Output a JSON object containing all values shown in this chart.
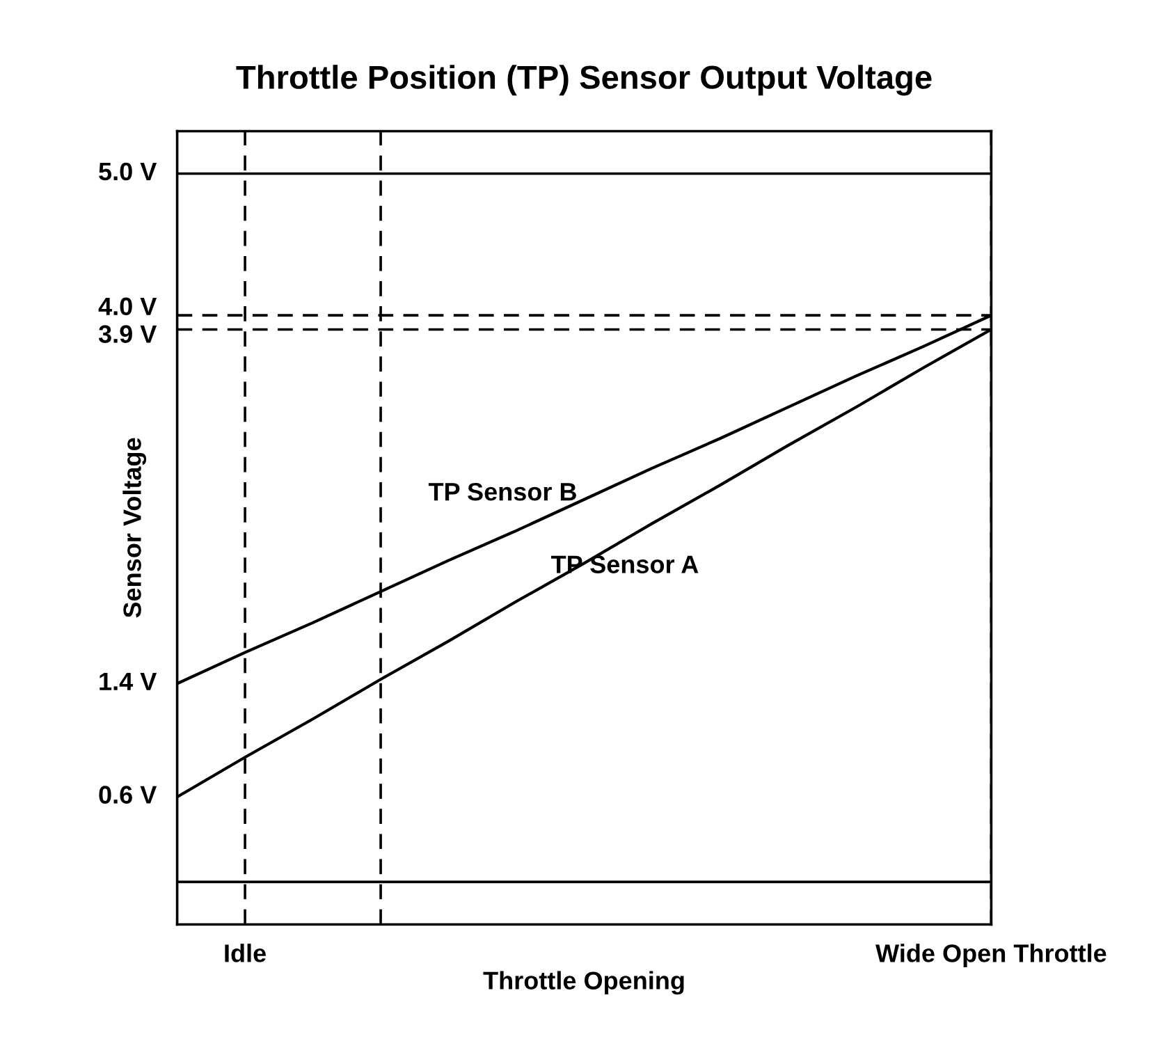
{
  "chart_data": {
    "type": "line",
    "title": "Throttle Position (TP) Sensor Output Voltage",
    "xlabel": "Throttle Opening",
    "ylabel": "Sensor Voltage",
    "categories": [
      null,
      "Idle",
      null,
      null,
      null,
      null,
      null,
      null,
      null,
      null,
      null,
      null,
      "Wide Open Throttle"
    ],
    "ylim": [
      -0.3,
      5.3
    ],
    "yticks": [
      {
        "value": 0.6,
        "label": "0.6 V"
      },
      {
        "value": 1.4,
        "label": "1.4 V"
      },
      {
        "value": 3.9,
        "label": "3.9 V"
      },
      {
        "value": 4.0,
        "label": "4.0 V"
      },
      {
        "value": 5.0,
        "label": "5.0 V"
      }
    ],
    "series": [
      {
        "name": "TP Sensor B",
        "color": "#000000",
        "values": [
          1.4,
          1.62,
          1.83,
          2.05,
          2.27,
          2.48,
          2.7,
          2.92,
          3.13,
          3.35,
          3.57,
          3.78,
          4.0
        ]
      },
      {
        "name": "TP Sensor A",
        "color": "#000000",
        "values": [
          0.6,
          0.88,
          1.15,
          1.43,
          1.7,
          1.98,
          2.25,
          2.53,
          2.8,
          3.08,
          3.35,
          3.63,
          3.9
        ]
      }
    ],
    "ref_lines": [
      {
        "axis": "y",
        "value": 5.0,
        "color": "#000000",
        "line_style": "solid"
      },
      {
        "axis": "y",
        "value": 0,
        "color": "#000000",
        "line_style": "solid"
      },
      {
        "axis": "y",
        "value": 4.0,
        "color": "#000000",
        "line_style": "dashed"
      },
      {
        "axis": "y",
        "value": 3.9,
        "color": "#000000",
        "line_style": "dashed"
      }
    ],
    "grid": "x",
    "legend": false,
    "marker": "none",
    "line_style": "solid"
  }
}
